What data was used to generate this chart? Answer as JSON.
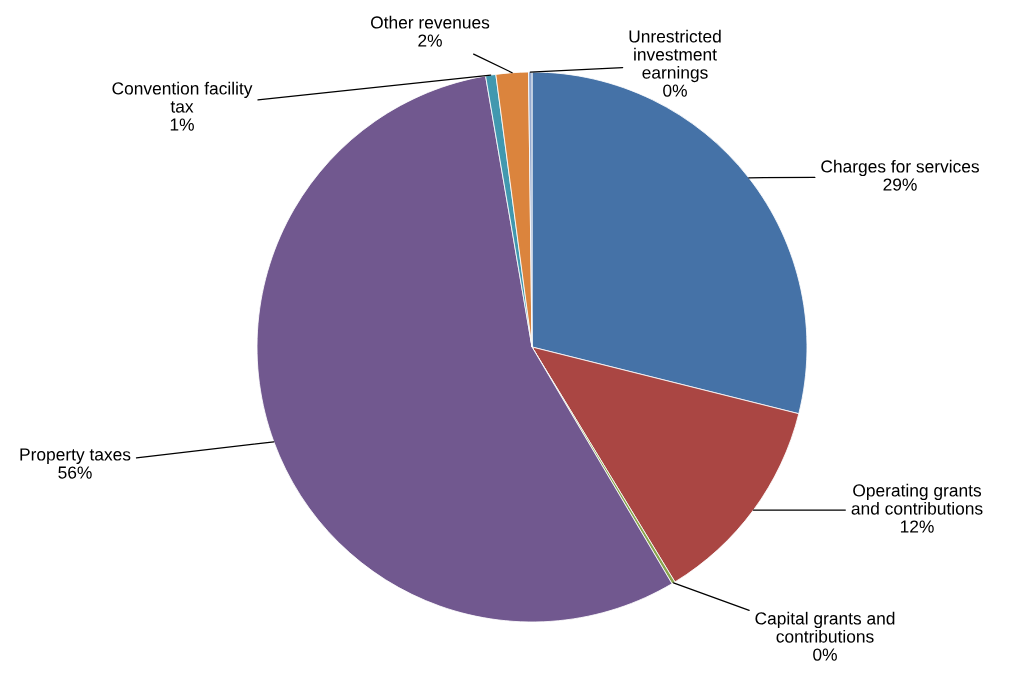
{
  "chart_data": {
    "type": "pie",
    "categories": [
      "Charges for services",
      "Operating grants\nand contributions",
      "Capital grants and\ncontributions",
      "Property taxes",
      "Convention facility\ntax",
      "Other revenues",
      "Unrestricted\ninvestment\nearnings"
    ],
    "values": [
      28.9,
      12.4,
      0.2,
      55.8,
      0.6,
      1.9,
      0.2
    ],
    "value_labels": [
      "29%",
      "12%",
      "0%",
      "56%",
      "1%",
      "2%",
      "0%"
    ],
    "colors": [
      "#4572a7",
      "#aa4643",
      "#89a54e",
      "#71588f",
      "#4198af",
      "#db843d",
      "#93a9cf"
    ],
    "legend": false
  }
}
